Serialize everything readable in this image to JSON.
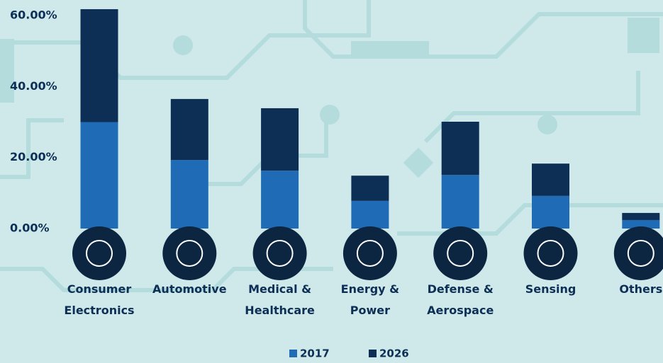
{
  "chart_data": {
    "type": "stacked_bar",
    "categories": [
      "Consumer Electronics",
      "Automotive",
      "Medical & Healthcare",
      "Energy & Power",
      "Defense & Aerospace",
      "Sensing",
      "Others"
    ],
    "series": [
      {
        "name": "2017",
        "color": "#1f6bb5",
        "values": [
          30,
          19.3,
          16.3,
          7.8,
          15.1,
          9.2,
          2.4
        ]
      },
      {
        "name": "2026",
        "color": "#0e2f55",
        "values": [
          31.8,
          17.2,
          17.6,
          7.1,
          15.0,
          9.1,
          2.0
        ]
      }
    ],
    "ylim": [
      0,
      60
    ],
    "yticks": [
      {
        "value": 0,
        "label": "0.00%"
      },
      {
        "value": 20,
        "label": "20.00%"
      },
      {
        "value": 40,
        "label": "40.00%"
      },
      {
        "value": 60,
        "label": "60.00%"
      }
    ],
    "grid": false,
    "legend": "bottom"
  }
}
